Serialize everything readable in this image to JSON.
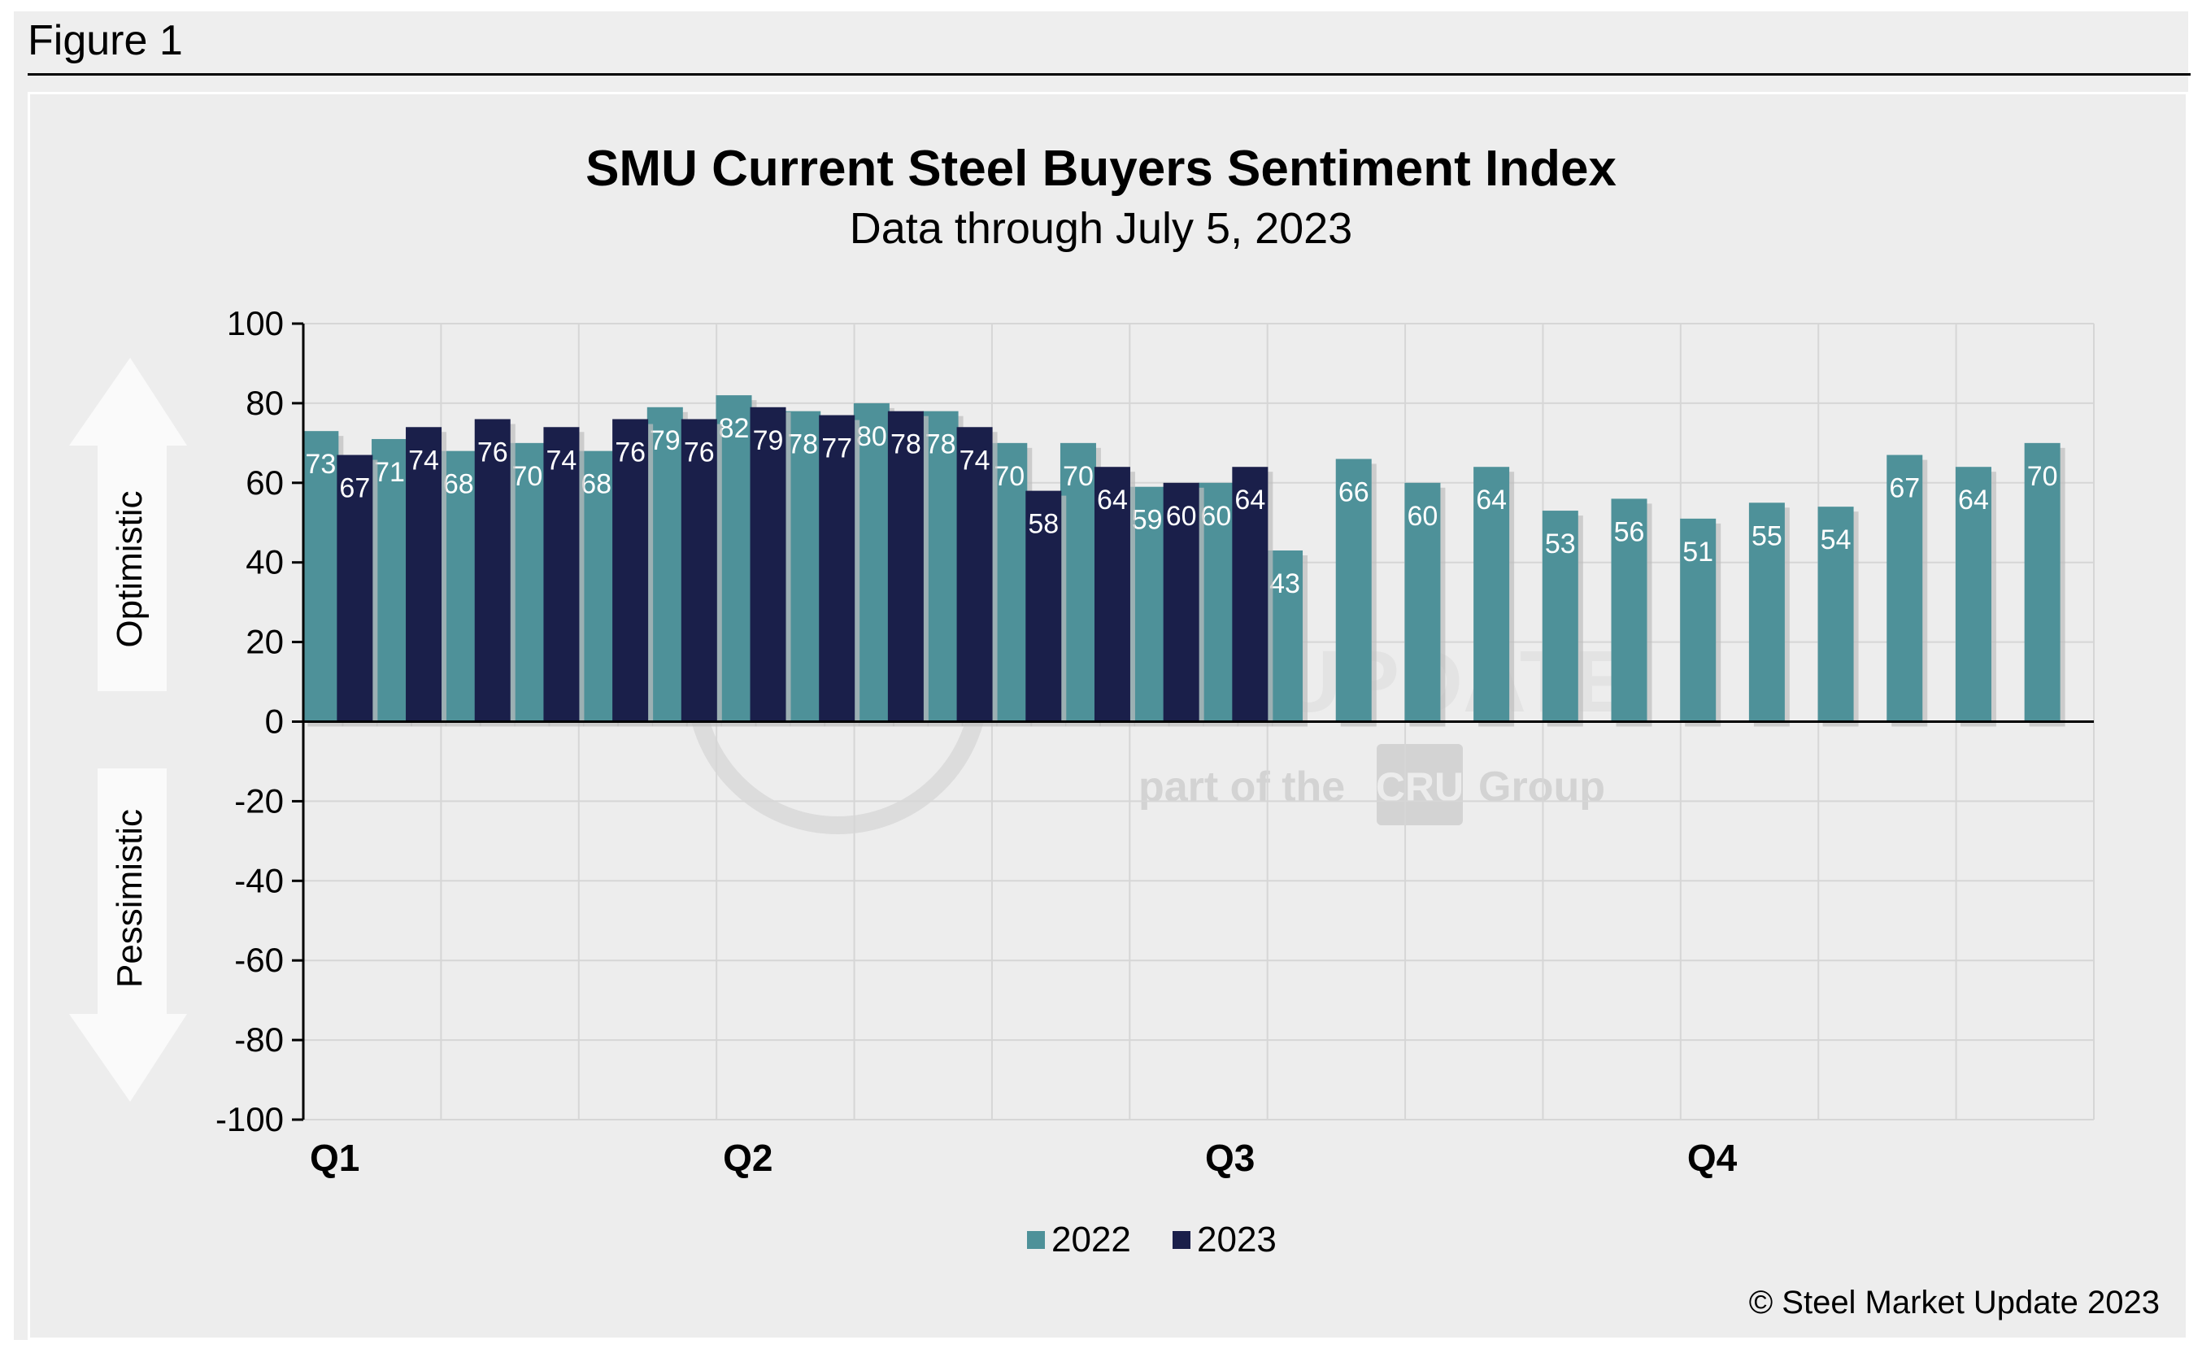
{
  "figure_label": "Figure 1",
  "copyright": "© Steel Market Update 2023",
  "watermark": {
    "brand": "STEEL MARKET UPDATE",
    "tagline_pre": "part of the",
    "tagline_logo": "CRU",
    "tagline_post": "Group"
  },
  "side_labels": {
    "top": "Optimistic",
    "bottom": "Pessimistic"
  },
  "colors": {
    "2022": "#4e9199",
    "2023": "#1a1f4a",
    "background": "#ededed",
    "grid": "#d6d6d6"
  },
  "chart_data": {
    "type": "bar",
    "title": "SMU Current Steel Buyers Sentiment Index",
    "subtitle": "Data through July 5, 2023",
    "ylim": [
      -100,
      100
    ],
    "yticks": [
      "100",
      "80",
      "60",
      "40",
      "20",
      "0",
      "-20",
      "-40",
      "-60",
      "-80",
      "-100"
    ],
    "quarter_labels": [
      "Q1",
      "Q2",
      "Q3",
      "Q4"
    ],
    "grid": true,
    "legend_position": "bottom-center",
    "series": [
      {
        "name": "2022",
        "values": [
          73,
          71,
          68,
          70,
          68,
          79,
          82,
          78,
          80,
          78,
          70,
          70,
          59,
          60,
          43,
          66,
          60,
          64,
          53,
          56,
          51,
          55,
          54,
          67,
          64,
          70
        ]
      },
      {
        "name": "2023",
        "values": [
          67,
          74,
          76,
          74,
          76,
          76,
          79,
          77,
          78,
          74,
          58,
          64,
          60,
          64
        ]
      }
    ]
  }
}
